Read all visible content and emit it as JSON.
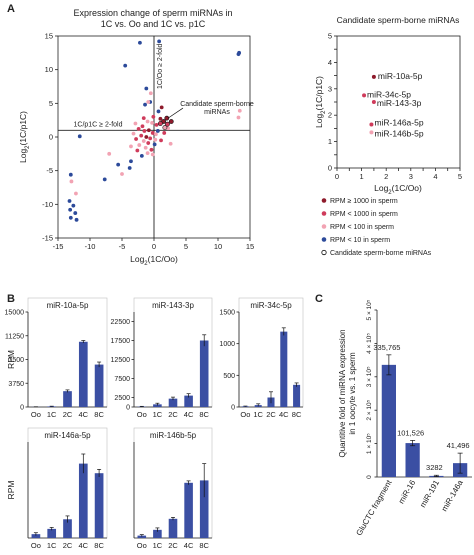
{
  "colors": {
    "blue": "#2c4a9a",
    "dark_red": "#8e1a2b",
    "red": "#cf3b5b",
    "pink": "#f2a3b3",
    "bar": "#3b4fa3",
    "axis": "#222222"
  },
  "panels": {
    "a": "A",
    "b": "B",
    "c": "C"
  },
  "chart_data": [
    {
      "id": "scatter",
      "type": "scatter",
      "title": "Expression change of sperm miRNAs in",
      "title2": "1C vs. Oo and 1C vs. p1C",
      "xlabel": "Log2(1C/Oo)",
      "ylabel": "Log2(1C/p1C)",
      "xlim": [
        -15,
        15
      ],
      "ylim": [
        -15,
        15
      ],
      "xticks": [
        -15,
        -10,
        -5,
        0,
        5,
        10,
        15
      ],
      "yticks": [
        -15,
        -10,
        -5,
        0,
        5,
        10,
        15
      ],
      "annotations": [
        "1C/Oo ≥ 2-fold",
        "1C/p1C ≥ 2-fold",
        "Candidate sperm-borne",
        "miRNAs"
      ],
      "legend": [
        {
          "label": "RPM ≥ 1000 in sperm",
          "color": "#8e1a2b"
        },
        {
          "label": "RPM < 1000 in sperm",
          "color": "#cf3b5b"
        },
        {
          "label": "RPM < 100 in sperm",
          "color": "#f2a3b3"
        },
        {
          "label": "RPM < 10 in sperm",
          "color": "#2c4a9a"
        },
        {
          "label": "Candidate sperm-borne miRNAs",
          "color": "none"
        }
      ],
      "points": [
        {
          "x": -4.5,
          "y": 10.6,
          "c": "blue"
        },
        {
          "x": -2.2,
          "y": 14.0,
          "c": "blue"
        },
        {
          "x": 0.8,
          "y": 14.2,
          "c": "blue"
        },
        {
          "x": -1.2,
          "y": 7.2,
          "c": "blue"
        },
        {
          "x": -0.6,
          "y": 5.2,
          "c": "blue"
        },
        {
          "x": -1.4,
          "y": 4.8,
          "c": "blue"
        },
        {
          "x": -0.5,
          "y": 6.5,
          "c": "pink"
        },
        {
          "x": -0.9,
          "y": 5.2,
          "c": "pink"
        },
        {
          "x": 0.7,
          "y": 3.8,
          "c": "blue"
        },
        {
          "x": 1.2,
          "y": 4.4,
          "c": "dark_red"
        },
        {
          "x": 1.0,
          "y": 2.7,
          "c": "dark_red"
        },
        {
          "x": -1.0,
          "y": 2.3,
          "c": "pink"
        },
        {
          "x": -0.3,
          "y": 2.1,
          "c": "pink"
        },
        {
          "x": 0.4,
          "y": 1.8,
          "c": "red"
        },
        {
          "x": -1.8,
          "y": 1.6,
          "c": "red"
        },
        {
          "x": -2.4,
          "y": 1.2,
          "c": "red"
        },
        {
          "x": -1.5,
          "y": 0.9,
          "c": "red"
        },
        {
          "x": -0.8,
          "y": 1.0,
          "c": "dark_red"
        },
        {
          "x": -0.2,
          "y": 0.6,
          "c": "red"
        },
        {
          "x": 0.3,
          "y": 0.4,
          "c": "pink"
        },
        {
          "x": -3.2,
          "y": 0.5,
          "c": "pink"
        },
        {
          "x": -2.0,
          "y": 0.2,
          "c": "red"
        },
        {
          "x": -1.2,
          "y": 0.0,
          "c": "dark_red"
        },
        {
          "x": -0.6,
          "y": -0.2,
          "c": "red"
        },
        {
          "x": 0.2,
          "y": -0.4,
          "c": "pink"
        },
        {
          "x": -2.8,
          "y": -0.3,
          "c": "red"
        },
        {
          "x": -1.6,
          "y": -0.6,
          "c": "pink"
        },
        {
          "x": -0.9,
          "y": -0.9,
          "c": "red"
        },
        {
          "x": 0.1,
          "y": -1.1,
          "c": "blue"
        },
        {
          "x": -2.3,
          "y": -1.2,
          "c": "pink"
        },
        {
          "x": -1.3,
          "y": -1.6,
          "c": "pink"
        },
        {
          "x": -0.4,
          "y": -1.9,
          "c": "red"
        },
        {
          "x": -3.6,
          "y": -1.4,
          "c": "pink"
        },
        {
          "x": -2.6,
          "y": -2.0,
          "c": "red"
        },
        {
          "x": -1.0,
          "y": -2.4,
          "c": "pink"
        },
        {
          "x": -1.9,
          "y": -2.8,
          "c": "blue"
        },
        {
          "x": -0.2,
          "y": -2.6,
          "c": "pink"
        },
        {
          "x": 0.6,
          "y": 0.9,
          "c": "blue"
        },
        {
          "x": 1.6,
          "y": 0.6,
          "c": "red"
        },
        {
          "x": 2.2,
          "y": 1.3,
          "c": "pink"
        },
        {
          "x": 1.1,
          "y": -0.5,
          "c": "red"
        },
        {
          "x": 2.6,
          "y": -1.0,
          "c": "pink"
        },
        {
          "x": -1.6,
          "y": 2.8,
          "c": "red"
        },
        {
          "x": -2.9,
          "y": 2.0,
          "c": "pink"
        },
        {
          "x": -0.1,
          "y": 3.0,
          "c": "red"
        },
        {
          "x": -3.6,
          "y": -3.6,
          "c": "blue"
        },
        {
          "x": -3.8,
          "y": -4.6,
          "c": "blue"
        },
        {
          "x": -5.6,
          "y": -4.1,
          "c": "blue"
        },
        {
          "x": -5.0,
          "y": -5.5,
          "c": "pink"
        },
        {
          "x": -7.7,
          "y": -6.3,
          "c": "blue"
        },
        {
          "x": -11.6,
          "y": 0.1,
          "c": "blue"
        },
        {
          "x": -13.0,
          "y": -5.6,
          "c": "blue"
        },
        {
          "x": -12.9,
          "y": -6.6,
          "c": "pink"
        },
        {
          "x": -12.2,
          "y": -8.4,
          "c": "pink"
        },
        {
          "x": -13.2,
          "y": -9.5,
          "c": "blue"
        },
        {
          "x": -12.6,
          "y": -10.2,
          "c": "blue"
        },
        {
          "x": -13.1,
          "y": -10.8,
          "c": "blue"
        },
        {
          "x": -12.3,
          "y": -11.3,
          "c": "blue"
        },
        {
          "x": -13.0,
          "y": -12.0,
          "c": "blue"
        },
        {
          "x": -12.1,
          "y": -12.3,
          "c": "blue"
        },
        {
          "x": 13.3,
          "y": 12.5,
          "c": "blue"
        },
        {
          "x": 13.2,
          "y": 12.3,
          "c": "blue"
        },
        {
          "x": 13.4,
          "y": 3.9,
          "c": "pink"
        },
        {
          "x": 13.2,
          "y": 2.9,
          "c": "pink"
        },
        {
          "x": -7.0,
          "y": -2.5,
          "c": "pink"
        }
      ],
      "candidates": [
        {
          "x": 2.0,
          "y": 2.8,
          "c": "dark_red"
        },
        {
          "x": 1.5,
          "y": 2.3,
          "c": "dark_red"
        },
        {
          "x": 2.7,
          "y": 2.3,
          "c": "dark_red"
        },
        {
          "x": 1.0,
          "y": 2.0,
          "c": "red"
        },
        {
          "x": 2.1,
          "y": 1.9,
          "c": "red"
        },
        {
          "x": 1.7,
          "y": 1.4,
          "c": "pink"
        }
      ]
    },
    {
      "id": "inset",
      "type": "scatter",
      "title": "Candidate sperm-borne miRNAs",
      "xlabel": "Log2(1C/Oo)",
      "ylabel": "Log2(1C/p1C)",
      "xlim": [
        0,
        5
      ],
      "ylim": [
        0,
        5
      ],
      "xticks": [
        0,
        0.5,
        1,
        1.5,
        2,
        2.5,
        3,
        3.5,
        4,
        4.5,
        5
      ],
      "yticks": [
        0,
        0.5,
        1,
        1.5,
        2,
        2.5,
        3,
        3.5,
        4,
        4.5,
        5
      ],
      "points": [
        {
          "label": "miR-10a-5p",
          "x": 1.5,
          "y": 3.45,
          "c": "dark_red"
        },
        {
          "label": "miR-34c-5p",
          "x": 1.1,
          "y": 2.75,
          "c": "red"
        },
        {
          "label": "miR-143-3p",
          "x": 1.5,
          "y": 2.5,
          "c": "red"
        },
        {
          "label": "miR-146a-5p",
          "x": 1.4,
          "y": 1.65,
          "c": "red"
        },
        {
          "label": "miR-146b-5p",
          "x": 1.4,
          "y": 1.35,
          "c": "pink"
        }
      ]
    },
    {
      "id": "b1",
      "type": "bar",
      "title": "miR-10a-5p",
      "ylabel": "RPM",
      "categories": [
        "Oo",
        "1C",
        "2C",
        "4C",
        "8C"
      ],
      "values": [
        20,
        90,
        2500,
        10300,
        6700
      ],
      "errors": [
        20,
        40,
        200,
        200,
        400
      ],
      "ylim": [
        0,
        15000
      ],
      "yticks": [
        0,
        3750,
        7500,
        11250,
        15000
      ]
    },
    {
      "id": "b2",
      "type": "bar",
      "title": "miR-143-3p",
      "categories": [
        "Oo",
        "1C",
        "2C",
        "4C",
        "8C"
      ],
      "values": [
        100,
        700,
        2200,
        3000,
        17500
      ],
      "errors": [
        80,
        300,
        400,
        500,
        1500
      ],
      "ylim": [
        0,
        25000
      ],
      "yticks": [
        0,
        2500,
        7500,
        12500,
        17500,
        22500
      ],
      "ytick_labels": [
        "0",
        "2500",
        "7500",
        "12500",
        "17500",
        "22500"
      ]
    },
    {
      "id": "b3",
      "type": "bar",
      "title": "miR-34c-5p",
      "categories": [
        "Oo",
        "1C",
        "2C",
        "4C",
        "8C"
      ],
      "values": [
        10,
        30,
        150,
        1190,
        350
      ],
      "errors": [
        5,
        20,
        90,
        60,
        30
      ],
      "ylim": [
        0,
        1500
      ],
      "yticks": [
        0,
        500,
        1000,
        1500
      ]
    },
    {
      "id": "b4",
      "type": "bar",
      "title": "miR-146a-5p",
      "ylabel": "RPM",
      "categories": [
        "Oo",
        "1C",
        "2C",
        "4C",
        "8C"
      ],
      "values": [
        80,
        190,
        390,
        1550,
        1350
      ],
      "errors": [
        30,
        30,
        70,
        200,
        80
      ],
      "ylim": [
        0,
        2000
      ]
    },
    {
      "id": "b5",
      "type": "bar",
      "title": "miR-146b-5p",
      "categories": [
        "Oo",
        "1C",
        "2C",
        "4C",
        "8C"
      ],
      "values": [
        50,
        170,
        400,
        1150,
        1200
      ],
      "errors": [
        20,
        40,
        30,
        40,
        350
      ],
      "ylim": [
        0,
        2000
      ]
    },
    {
      "id": "c",
      "type": "bar",
      "ylabel": "Quantitive fold of miRNA expression",
      "ylabel2": "in 1 oocyte vs. 1 sperm",
      "categories": [
        "GluCTC fragment",
        "miR-16",
        "miR-191",
        "miR-146a"
      ],
      "values": [
        335765,
        101526,
        3282,
        41496
      ],
      "errors": [
        30000,
        8000,
        2000,
        30000
      ],
      "value_labels": [
        "335,765",
        "101,526",
        "3282",
        "41,496"
      ],
      "ylim": [
        0,
        500000
      ],
      "yticks": [
        0,
        100000,
        200000,
        300000,
        400000,
        500000
      ],
      "ytick_labels": [
        "0",
        "1 × 10⁵",
        "2 × 10⁵",
        "3 × 10⁵",
        "4 × 10⁵",
        "5 × 10⁵"
      ]
    }
  ]
}
